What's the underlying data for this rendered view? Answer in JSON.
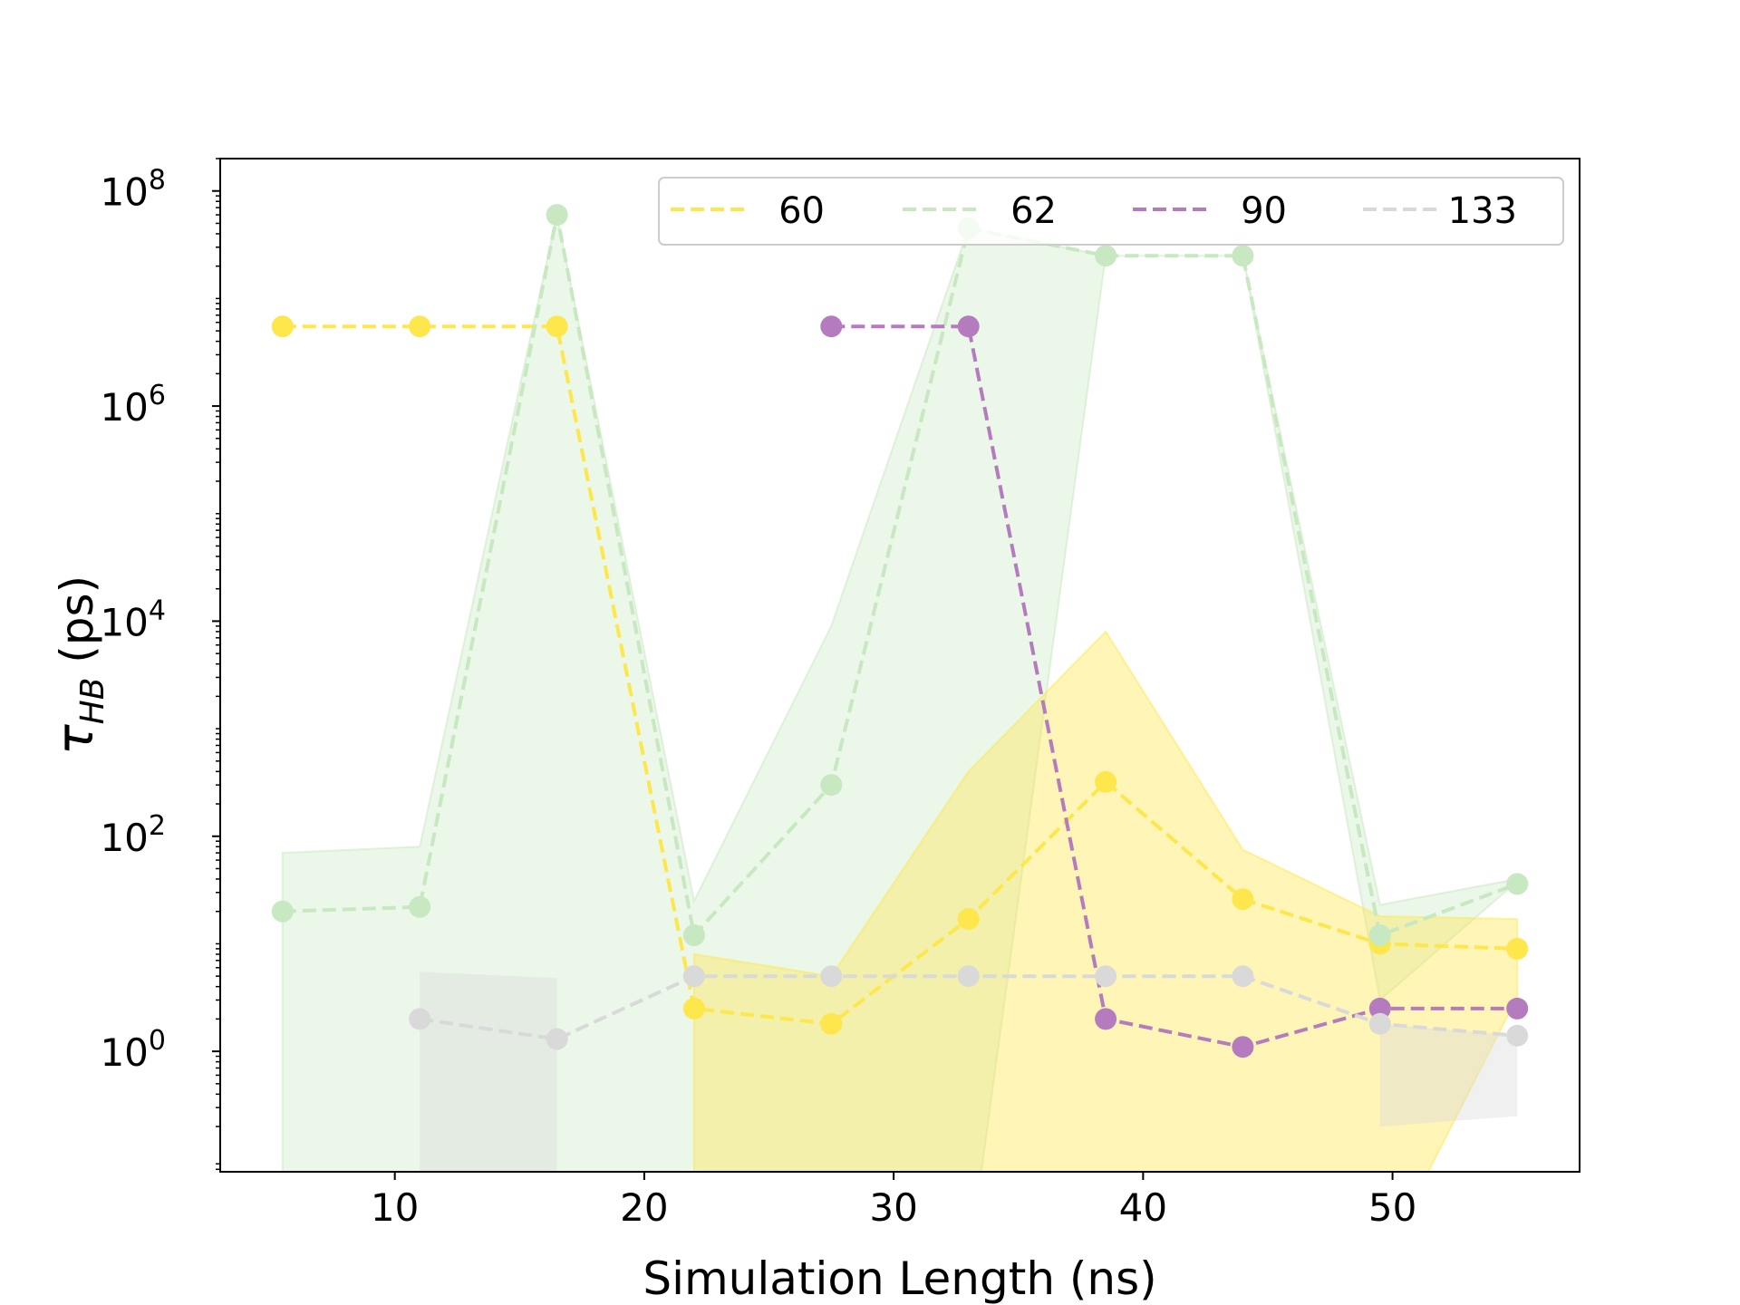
{
  "chart_data": {
    "type": "line",
    "xlabel": "Simulation Length (ns)",
    "ylabel": "τ",
    "ylabel_subscript": "HB",
    "ylabel_suffix": " (ps)",
    "xlim": [
      3.0,
      57.5
    ],
    "ylim": [
      0.0759,
      200000000
    ],
    "yscale": "log",
    "x_ticks": [
      10,
      20,
      30,
      40,
      50
    ],
    "x_tick_labels": [
      "10",
      "20",
      "30",
      "40",
      "50"
    ],
    "y_ticks": [
      1,
      100,
      10000,
      1000000,
      100000000
    ],
    "y_tick_base": "10",
    "y_tick_exponents": [
      "0",
      "2",
      "4",
      "6",
      "8"
    ],
    "grid": false,
    "legend_position": "top-right",
    "series": [
      {
        "name": "60",
        "color": "#fde74c",
        "x": [
          5.5,
          11,
          16.5,
          22,
          27.5,
          33,
          38.5,
          44,
          49.5,
          55
        ],
        "y": [
          5500000,
          5500000,
          5500000,
          2.5,
          1.8,
          17,
          320,
          26,
          10,
          9
        ],
        "band_x": [
          22,
          27.5,
          33,
          38.5,
          44,
          49.5,
          55
        ],
        "band_lower": [
          0.01,
          0.01,
          0.01,
          0.01,
          0.01,
          0.01,
          3.2
        ],
        "band_upper": [
          8,
          5,
          400,
          8000,
          75,
          18,
          17
        ]
      },
      {
        "name": "62",
        "color": "#c7e8c0",
        "x": [
          5.5,
          11,
          16.5,
          22,
          27.5,
          33,
          38.5,
          44,
          49.5,
          55
        ],
        "y": [
          20,
          22,
          60000000,
          12,
          300,
          45000000,
          25000000,
          25000000,
          12,
          36
        ],
        "band_x": [
          5.5,
          11,
          16.5,
          22,
          27.5,
          33,
          38.5,
          44,
          49.5,
          55
        ],
        "band_lower": [
          0.01,
          0.01,
          0.01,
          0.01,
          0.01,
          0.01,
          25000000,
          25000000,
          3,
          38
        ],
        "band_upper": [
          70,
          80,
          60000000,
          25,
          9000,
          45000000,
          25000000,
          25000000,
          23,
          40
        ]
      },
      {
        "name": "90",
        "color": "#b57bbf",
        "x": [
          27.5,
          33,
          38.5,
          44,
          49.5,
          55
        ],
        "y": [
          5500000,
          5500000,
          2,
          1.1,
          2.5,
          2.5
        ]
      },
      {
        "name": "133",
        "color": "#d9d9d9",
        "x": [
          11,
          16.5,
          22,
          27.5,
          33,
          38.5,
          44,
          49.5,
          55
        ],
        "y": [
          2,
          1.3,
          5,
          5,
          5,
          5,
          5,
          1.8,
          1.4
        ],
        "band_segments": [
          {
            "x": [
              11,
              16.5
            ],
            "lower": [
              0.01,
              0.01
            ],
            "upper": [
              5.5,
              4.8
            ]
          },
          {
            "x": [
              49.5,
              55
            ],
            "lower": [
              0.2,
              0.25
            ],
            "upper": [
              1.8,
              1.4
            ]
          }
        ]
      }
    ]
  }
}
